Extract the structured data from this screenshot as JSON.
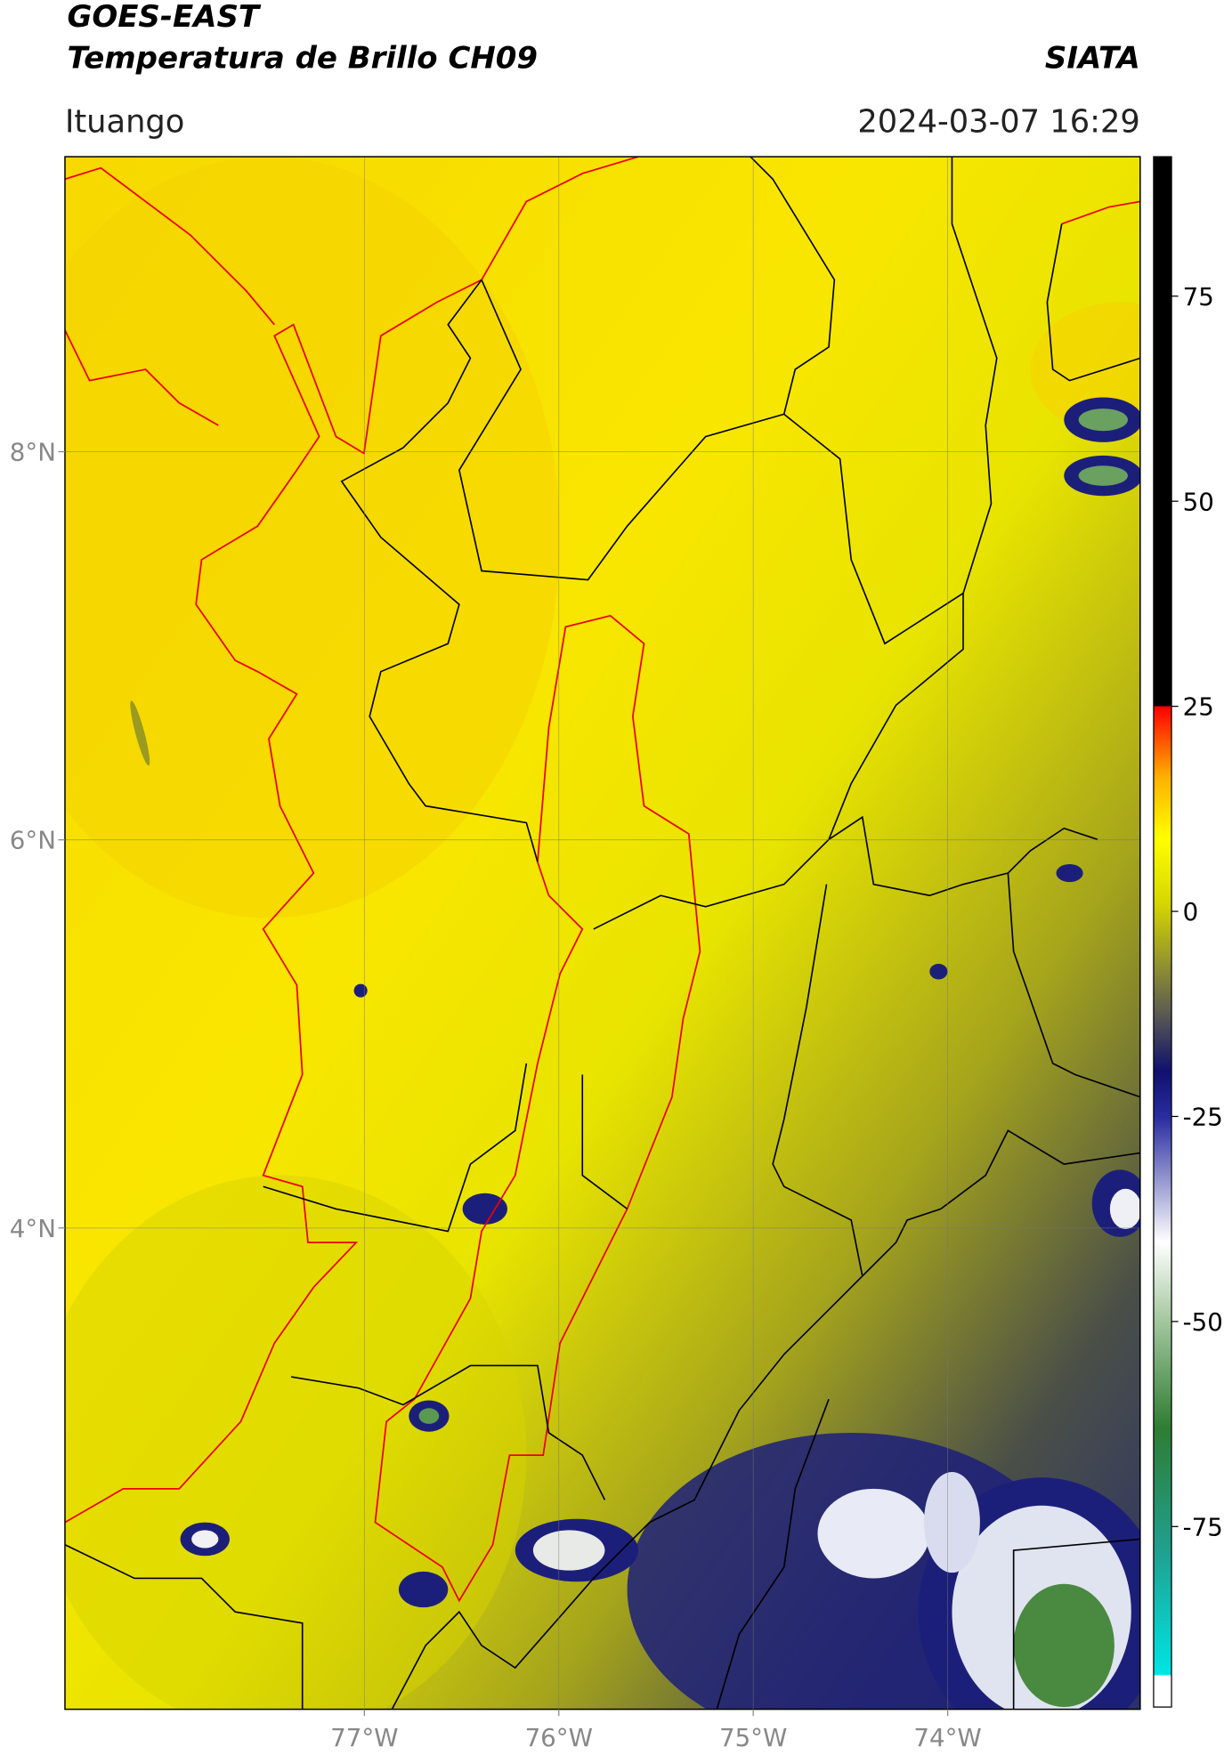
{
  "header": {
    "title": "GOES-EAST",
    "subtitle": "Temperatura de Brillo CH09",
    "source": "SIATA",
    "location": "Ituango",
    "datetime": "2024-03-07 16:29"
  },
  "map": {
    "xlim": [
      -78.54,
      -73.01
    ],
    "ylim": [
      1.52,
      9.52
    ],
    "xticks": [
      {
        "value": -77,
        "label": "77°W"
      },
      {
        "value": -76,
        "label": "76°W"
      },
      {
        "value": -75,
        "label": "75°W"
      },
      {
        "value": -74,
        "label": "74°W"
      }
    ],
    "yticks": [
      {
        "value": 8,
        "label": "8°N"
      },
      {
        "value": 6,
        "label": "6°N"
      },
      {
        "value": 4,
        "label": "4°N"
      }
    ],
    "grid": true
  },
  "colorbar": {
    "lim": [
      -97,
      92
    ],
    "ticks": [
      75,
      50,
      25,
      0,
      -25,
      -50,
      -75
    ]
  }
}
